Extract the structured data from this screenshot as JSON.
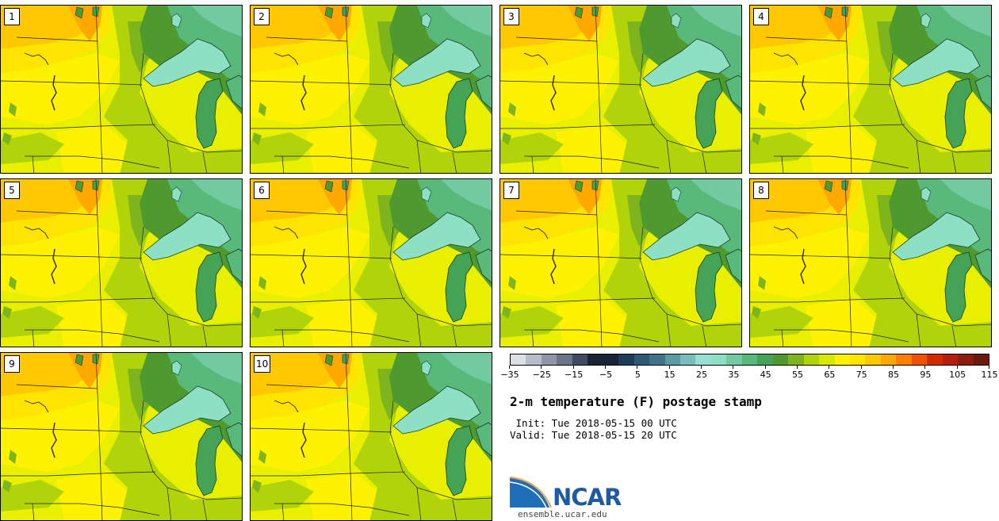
{
  "figure": {
    "title": "2-m temperature (F) postage stamp",
    "init_line": " Init: Tue 2018-05-15 00 UTC",
    "valid_line": "Valid: Tue 2018-05-15 20 UTC"
  },
  "members": [
    "1",
    "2",
    "3",
    "4",
    "5",
    "6",
    "7",
    "8",
    "9",
    "10"
  ],
  "colorbar": {
    "tick_labels": [
      "−35",
      "−25",
      "−15",
      "−5",
      "5",
      "15",
      "25",
      "35",
      "45",
      "55",
      "65",
      "75",
      "85",
      "95",
      "105",
      "115"
    ],
    "colors": [
      "#dcdfe6",
      "#b6bcc8",
      "#8f97a8",
      "#6b7489",
      "#3f4a63",
      "#1a2236",
      "#16233a",
      "#1c3c58",
      "#2d5873",
      "#3f7387",
      "#5a9aa2",
      "#79bcbd",
      "#95dfd3",
      "#8ee0c4",
      "#72cba0",
      "#58b97a",
      "#45a356",
      "#4e9a2f",
      "#7fb51c",
      "#b0d30a",
      "#dbe800",
      "#fff200",
      "#ffe400",
      "#ffc800",
      "#ffa800",
      "#ff7e00",
      "#f05200",
      "#d42a00",
      "#b51e0c",
      "#8f1a10",
      "#6b180e"
    ]
  },
  "logo": {
    "name": "NCAR",
    "url": "ensemble.ucar.edu"
  }
}
